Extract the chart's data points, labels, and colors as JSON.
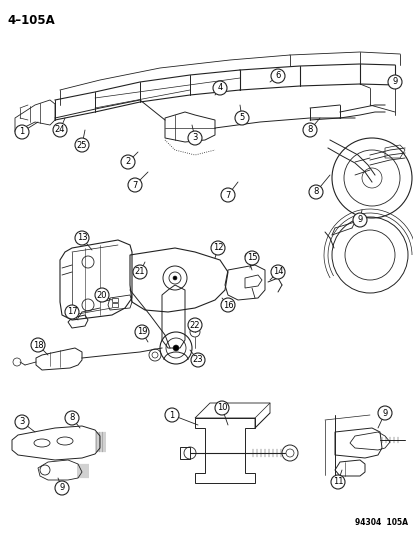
{
  "page_label": "4–105A",
  "background_color": "#f5f5f5",
  "diagram_code": "94304  105A",
  "fig_width": 4.14,
  "fig_height": 5.33,
  "dpi": 100,
  "text_color": "#1a1a1a",
  "line_color": "#222222"
}
